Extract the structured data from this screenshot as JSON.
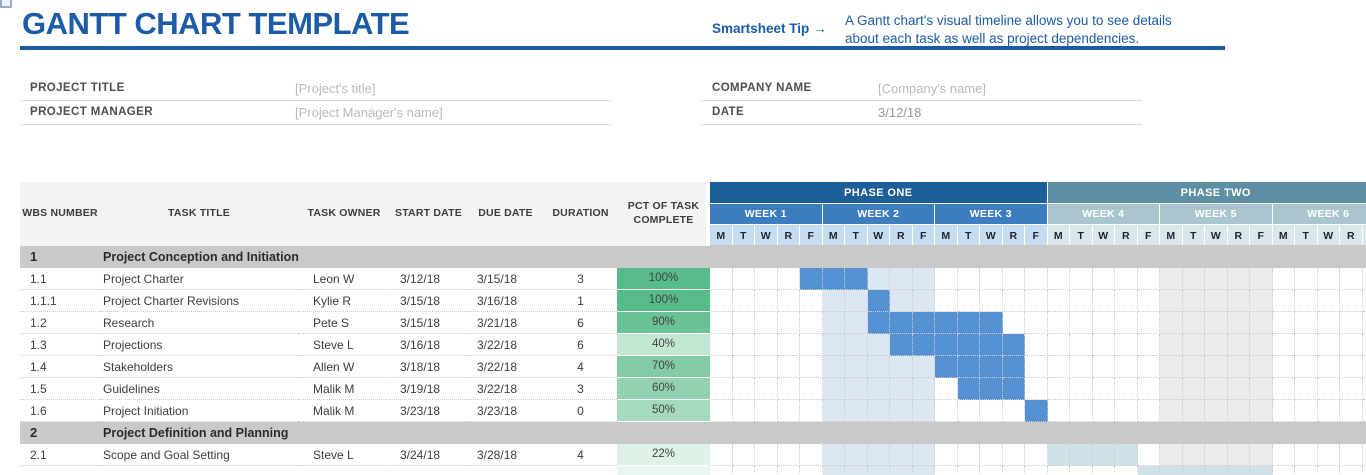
{
  "header": {
    "title": "GANTT CHART TEMPLATE",
    "tip_label": "Smartsheet Tip",
    "tip_arrow": "→",
    "tip_line1": "A Gantt chart's visual timeline allows you to see details",
    "tip_line2": "about each task as well as project dependencies.",
    "accent_color": "#1d5aa4"
  },
  "form": {
    "left": [
      {
        "label": "PROJECT TITLE",
        "value": "[Project's title]",
        "muted": true
      },
      {
        "label": "PROJECT MANAGER",
        "value": "[Project Manager's name]",
        "muted": true
      }
    ],
    "right": [
      {
        "label": "COMPANY NAME",
        "value": "[Company's name]",
        "muted": true
      },
      {
        "label": "DATE",
        "value": "3/12/18",
        "muted": false
      }
    ]
  },
  "table": {
    "columns": [
      "WBS NUMBER",
      "TASK TITLE",
      "TASK OWNER",
      "START DATE",
      "DUE DATE",
      "DURATION",
      "PCT OF TASK COMPLETE"
    ]
  },
  "gantt": {
    "phases": [
      {
        "label": "PHASE ONE",
        "bg": "#1d5e98",
        "week_bg": "#3e7dbd",
        "day_bg": "#c6ddf1",
        "weeks": [
          "WEEK 1",
          "WEEK 2",
          "WEEK 3"
        ]
      },
      {
        "label": "PHASE TWO",
        "bg": "#5e8ea1",
        "week_bg": "#a9c6cf",
        "day_bg": "#d9e6ea",
        "weeks": [
          "WEEK 4",
          "WEEK 5",
          "WEEK 6"
        ]
      }
    ],
    "day_letters": [
      "M",
      "T",
      "W",
      "R",
      "F"
    ],
    "bar_colors": {
      "done": "#5590d2",
      "plan": "#dce7f3",
      "teal": "#d0e1e8",
      "shade": "#ececee"
    }
  },
  "rows": [
    {
      "type": "section",
      "wbs": "1",
      "title": "Project Conception and Initiation"
    },
    {
      "type": "task",
      "wbs": "1.1",
      "title": "Project Charter",
      "owner": "Leon W",
      "start": "3/12/18",
      "due": "3/15/18",
      "dur": "3",
      "pct": "100%",
      "pct_bg": "#57bb8a",
      "bars": [
        {
          "s": 4,
          "l": 3,
          "t": "done"
        },
        {
          "s": 7,
          "l": 3,
          "t": "plan"
        },
        {
          "s": 20,
          "l": 5,
          "t": "shade"
        }
      ]
    },
    {
      "type": "task",
      "wbs": "1.1.1",
      "title": "Project Charter Revisions",
      "owner": "Kylie R",
      "start": "3/15/18",
      "due": "3/16/18",
      "dur": "1",
      "pct": "100%",
      "pct_bg": "#57bb8a",
      "bars": [
        {
          "s": 5,
          "l": 2,
          "t": "plan"
        },
        {
          "s": 7,
          "l": 1,
          "t": "done"
        },
        {
          "s": 8,
          "l": 2,
          "t": "plan"
        },
        {
          "s": 20,
          "l": 5,
          "t": "shade"
        }
      ]
    },
    {
      "type": "task",
      "wbs": "1.2",
      "title": "Research",
      "owner": "Pete S",
      "start": "3/15/18",
      "due": "3/21/18",
      "dur": "6",
      "pct": "90%",
      "pct_bg": "#68c295",
      "bars": [
        {
          "s": 5,
          "l": 2,
          "t": "plan"
        },
        {
          "s": 7,
          "l": 6,
          "t": "done"
        },
        {
          "s": 20,
          "l": 5,
          "t": "shade"
        }
      ]
    },
    {
      "type": "task",
      "wbs": "1.3",
      "title": "Projections",
      "owner": "Steve L",
      "start": "3/16/18",
      "due": "3/22/18",
      "dur": "6",
      "pct": "40%",
      "pct_bg": "#c4e7d4",
      "bars": [
        {
          "s": 5,
          "l": 3,
          "t": "plan"
        },
        {
          "s": 8,
          "l": 6,
          "t": "done"
        },
        {
          "s": 20,
          "l": 5,
          "t": "shade"
        }
      ]
    },
    {
      "type": "task",
      "wbs": "1.4",
      "title": "Stakeholders",
      "owner": "Allen W",
      "start": "3/18/18",
      "due": "3/22/18",
      "dur": "4",
      "pct": "70%",
      "pct_bg": "#82cba6",
      "bars": [
        {
          "s": 5,
          "l": 5,
          "t": "plan"
        },
        {
          "s": 10,
          "l": 4,
          "t": "done"
        },
        {
          "s": 20,
          "l": 5,
          "t": "shade"
        }
      ]
    },
    {
      "type": "task",
      "wbs": "1.5",
      "title": "Guidelines",
      "owner": "Malik M",
      "start": "3/19/18",
      "due": "3/22/18",
      "dur": "3",
      "pct": "60%",
      "pct_bg": "#93d2b1",
      "bars": [
        {
          "s": 5,
          "l": 5,
          "t": "plan"
        },
        {
          "s": 11,
          "l": 3,
          "t": "done"
        },
        {
          "s": 20,
          "l": 5,
          "t": "shade"
        }
      ]
    },
    {
      "type": "task",
      "wbs": "1.6",
      "title": "Project Initiation",
      "owner": "Malik M",
      "start": "3/23/18",
      "due": "3/23/18",
      "dur": "0",
      "pct": "50%",
      "pct_bg": "#a6dabe",
      "bars": [
        {
          "s": 5,
          "l": 5,
          "t": "plan"
        },
        {
          "s": 14,
          "l": 1,
          "t": "done"
        },
        {
          "s": 20,
          "l": 5,
          "t": "shade"
        }
      ]
    },
    {
      "type": "section",
      "wbs": "2",
      "title": "Project Definition and Planning"
    },
    {
      "type": "task",
      "wbs": "2.1",
      "title": "Scope and Goal Setting",
      "owner": "Steve L",
      "start": "3/24/18",
      "due": "3/28/18",
      "dur": "4",
      "pct": "22%",
      "pct_bg": "#def1e7",
      "bars": [
        {
          "s": 5,
          "l": 5,
          "t": "plan"
        },
        {
          "s": 15,
          "l": 4,
          "t": "teal"
        },
        {
          "s": 20,
          "l": 5,
          "t": "shade"
        }
      ]
    },
    {
      "type": "task",
      "wbs": "",
      "title": "",
      "owner": "",
      "start": "",
      "due": "",
      "dur": "",
      "pct": "",
      "pct_bg": "#eaf6f0",
      "bars": [
        {
          "s": 5,
          "l": 5,
          "t": "plan"
        },
        {
          "s": 19,
          "l": 6,
          "t": "teal"
        }
      ]
    }
  ]
}
